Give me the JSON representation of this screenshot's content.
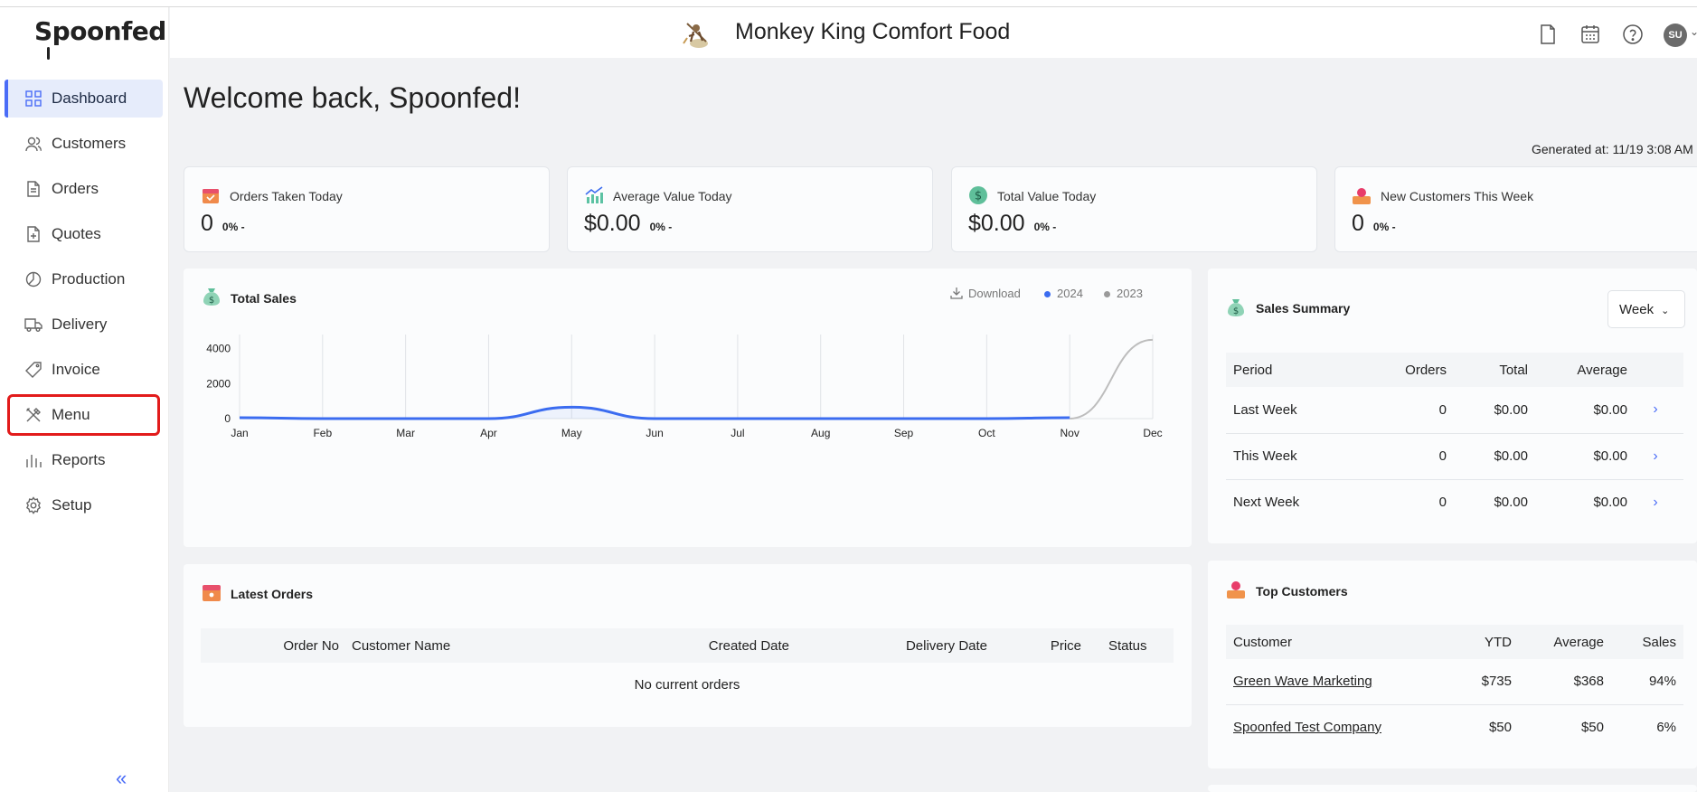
{
  "sidebar": {
    "logo": "Spoonfed",
    "items": [
      {
        "label": "Dashboard",
        "icon": "dashboard-icon"
      },
      {
        "label": "Customers",
        "icon": "users-icon"
      },
      {
        "label": "Orders",
        "icon": "file-icon"
      },
      {
        "label": "Quotes",
        "icon": "file-plus-icon"
      },
      {
        "label": "Production",
        "icon": "pie-icon"
      },
      {
        "label": "Delivery",
        "icon": "truck-icon"
      },
      {
        "label": "Invoice",
        "icon": "tag-icon"
      },
      {
        "label": "Menu",
        "icon": "utensils-icon"
      },
      {
        "label": "Reports",
        "icon": "bar-chart-icon"
      },
      {
        "label": "Setup",
        "icon": "gear-icon"
      }
    ],
    "collapse_label": "«"
  },
  "header": {
    "restaurant_name": "Monkey King Comfort Food",
    "user_initials": "SU"
  },
  "welcome": "Welcome back, Spoonfed!",
  "generated_at": "Generated at: 11/19 3:08 AM",
  "stats": [
    {
      "label": "Orders Taken Today",
      "value": "0",
      "change": "0% -"
    },
    {
      "label": "Average Value Today",
      "value": "$0.00",
      "change": "0% -"
    },
    {
      "label": "Total Value Today",
      "value": "$0.00",
      "change": "0% -"
    },
    {
      "label": "New Customers This Week",
      "value": "0",
      "change": "0% -"
    }
  ],
  "total_sales": {
    "title": "Total Sales",
    "download_label": "Download"
  },
  "chart_data": {
    "type": "line",
    "title": "Total Sales",
    "categories": [
      "Jan",
      "Feb",
      "Mar",
      "Apr",
      "May",
      "Jun",
      "Jul",
      "Aug",
      "Sep",
      "Oct",
      "Nov",
      "Dec"
    ],
    "series": [
      {
        "name": "2024",
        "color": "#3b6cf0",
        "values": [
          50,
          0,
          0,
          0,
          650,
          0,
          0,
          0,
          0,
          0,
          50,
          null
        ]
      },
      {
        "name": "2023",
        "color": "#bdbdbd",
        "values": [
          null,
          null,
          null,
          null,
          null,
          null,
          null,
          null,
          null,
          null,
          0,
          4500
        ]
      }
    ],
    "yticks": [
      "0",
      "2000",
      "4000"
    ],
    "ylim": [
      0,
      4800
    ],
    "legend": "top-right",
    "grid": "vertical"
  },
  "sales_summary": {
    "title": "Sales Summary",
    "period_select": "Week",
    "columns": [
      "Period",
      "Orders",
      "Total",
      "Average"
    ],
    "rows": [
      {
        "period": "Last Week",
        "orders": "0",
        "total": "$0.00",
        "average": "$0.00"
      },
      {
        "period": "This Week",
        "orders": "0",
        "total": "$0.00",
        "average": "$0.00"
      },
      {
        "period": "Next Week",
        "orders": "0",
        "total": "$0.00",
        "average": "$0.00"
      }
    ]
  },
  "latest_orders": {
    "title": "Latest Orders",
    "columns": [
      "Order No",
      "Customer Name",
      "Created Date",
      "Delivery Date",
      "Price",
      "Status"
    ],
    "empty_text": "No current orders"
  },
  "top_customers": {
    "title": "Top Customers",
    "columns": [
      "Customer",
      "YTD",
      "Average",
      "Sales"
    ],
    "rows": [
      {
        "customer": "Green Wave Marketing",
        "ytd": "$735",
        "average": "$368",
        "sales": "94%"
      },
      {
        "customer": "Spoonfed Test Company",
        "ytd": "$50",
        "average": "$50",
        "sales": "6%"
      }
    ]
  }
}
